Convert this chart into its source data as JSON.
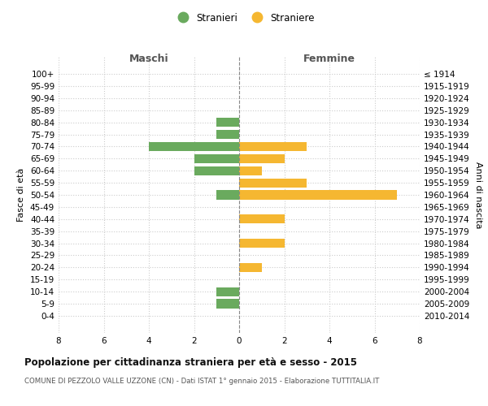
{
  "age_groups": [
    "100+",
    "95-99",
    "90-94",
    "85-89",
    "80-84",
    "75-79",
    "70-74",
    "65-69",
    "60-64",
    "55-59",
    "50-54",
    "45-49",
    "40-44",
    "35-39",
    "30-34",
    "25-29",
    "20-24",
    "15-19",
    "10-14",
    "5-9",
    "0-4"
  ],
  "birth_years": [
    "≤ 1914",
    "1915-1919",
    "1920-1924",
    "1925-1929",
    "1930-1934",
    "1935-1939",
    "1940-1944",
    "1945-1949",
    "1950-1954",
    "1955-1959",
    "1960-1964",
    "1965-1969",
    "1970-1974",
    "1975-1979",
    "1980-1984",
    "1985-1989",
    "1990-1994",
    "1995-1999",
    "2000-2004",
    "2005-2009",
    "2010-2014"
  ],
  "maschi": [
    0,
    0,
    0,
    0,
    1,
    1,
    4,
    2,
    2,
    0,
    1,
    0,
    0,
    0,
    0,
    0,
    0,
    0,
    1,
    1,
    0
  ],
  "femmine": [
    0,
    0,
    0,
    0,
    0,
    0,
    3,
    2,
    1,
    3,
    7,
    0,
    2,
    0,
    2,
    0,
    1,
    0,
    0,
    0,
    0
  ],
  "color_maschi": "#6aaa5e",
  "color_femmine": "#f5b731",
  "xlim": 8,
  "title": "Popolazione per cittadinanza straniera per età e sesso - 2015",
  "subtitle": "COMUNE DI PEZZOLO VALLE UZZONE (CN) - Dati ISTAT 1° gennaio 2015 - Elaborazione TUTTITALIA.IT",
  "ylabel_left": "Fasce di età",
  "ylabel_right": "Anni di nascita",
  "header_left": "Maschi",
  "header_right": "Femmine",
  "legend_stranieri": "Stranieri",
  "legend_straniere": "Straniere",
  "background_color": "#ffffff",
  "grid_color": "#cccccc",
  "bar_height": 0.75
}
